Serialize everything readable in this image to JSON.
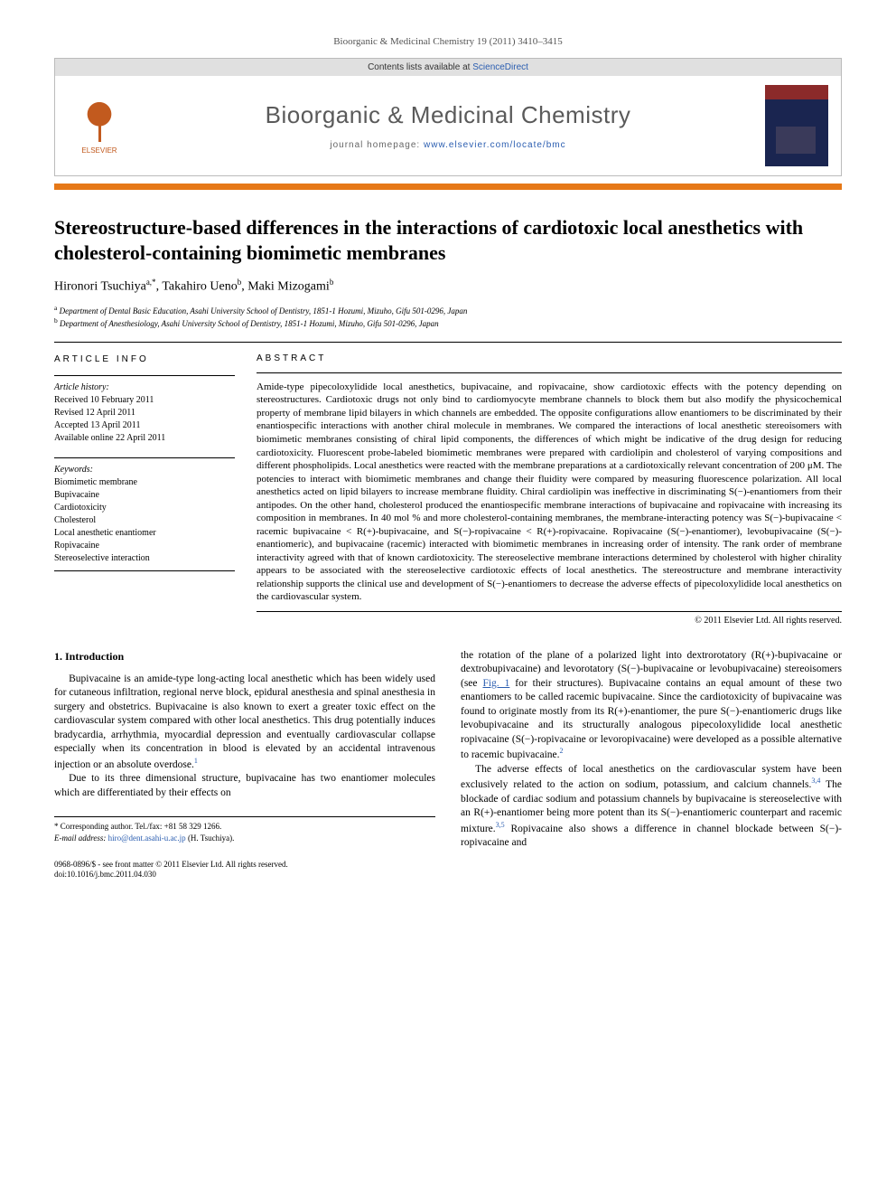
{
  "running_head": "Bioorganic & Medicinal Chemistry 19 (2011) 3410–3415",
  "header": {
    "contents_line_prefix": "Contents lists available at ",
    "contents_link": "ScienceDirect",
    "journal_name": "Bioorganic & Medicinal Chemistry",
    "homepage_prefix": "journal homepage: ",
    "homepage_url": "www.elsevier.com/locate/bmc",
    "publisher_logo_label": "ELSEVIER",
    "cover_label": "Bioorganic & Medicinal Chemistry"
  },
  "colors": {
    "divider": "#e67817",
    "link": "#2a5db0",
    "elsevier": "#c25a1e",
    "cover_top": "#8b2a2a",
    "cover_body": "#1a2550"
  },
  "article": {
    "title": "Stereostructure-based differences in the interactions of cardiotoxic local anesthetics with cholesterol-containing biomimetic membranes",
    "authors_html": "Hironori Tsuchiya",
    "author1": "Hironori Tsuchiya",
    "author1_sup": "a,*",
    "author2": "Takahiro Ueno",
    "author2_sup": "b",
    "author3": "Maki Mizogami",
    "author3_sup": "b",
    "affiliations": [
      {
        "sup": "a",
        "text": "Department of Dental Basic Education, Asahi University School of Dentistry, 1851-1 Hozumi, Mizuho, Gifu 501-0296, Japan"
      },
      {
        "sup": "b",
        "text": "Department of Anesthesiology, Asahi University School of Dentistry, 1851-1 Hozumi, Mizuho, Gifu 501-0296, Japan"
      }
    ]
  },
  "info": {
    "heading": "ARTICLE INFO",
    "history_label": "Article history:",
    "history": [
      "Received 10 February 2011",
      "Revised 12 April 2011",
      "Accepted 13 April 2011",
      "Available online 22 April 2011"
    ],
    "keywords_label": "Keywords:",
    "keywords": [
      "Biomimetic membrane",
      "Bupivacaine",
      "Cardiotoxicity",
      "Cholesterol",
      "Local anesthetic enantiomer",
      "Ropivacaine",
      "Stereoselective interaction"
    ]
  },
  "abstract": {
    "heading": "ABSTRACT",
    "text": "Amide-type pipecoloxylidide local anesthetics, bupivacaine, and ropivacaine, show cardiotoxic effects with the potency depending on stereostructures. Cardiotoxic drugs not only bind to cardiomyocyte membrane channels to block them but also modify the physicochemical property of membrane lipid bilayers in which channels are embedded. The opposite configurations allow enantiomers to be discriminated by their enantiospecific interactions with another chiral molecule in membranes. We compared the interactions of local anesthetic stereoisomers with biomimetic membranes consisting of chiral lipid components, the differences of which might be indicative of the drug design for reducing cardiotoxicity. Fluorescent probe-labeled biomimetic membranes were prepared with cardiolipin and cholesterol of varying compositions and different phospholipids. Local anesthetics were reacted with the membrane preparations at a cardiotoxically relevant concentration of 200 μM. The potencies to interact with biomimetic membranes and change their fluidity were compared by measuring fluorescence polarization. All local anesthetics acted on lipid bilayers to increase membrane fluidity. Chiral cardiolipin was ineffective in discriminating S(−)-enantiomers from their antipodes. On the other hand, cholesterol produced the enantiospecific membrane interactions of bupivacaine and ropivacaine with increasing its composition in membranes. In 40 mol % and more cholesterol-containing membranes, the membrane-interacting potency was S(−)-bupivacaine < racemic bupivacaine < R(+)-bupivacaine, and S(−)-ropivacaine < R(+)-ropivacaine. Ropivacaine (S(−)-enantiomer), levobupivacaine (S(−)-enantiomeric), and bupivacaine (racemic) interacted with biomimetic membranes in increasing order of intensity. The rank order of membrane interactivity agreed with that of known cardiotoxicity. The stereoselective membrane interactions determined by cholesterol with higher chirality appears to be associated with the stereoselective cardiotoxic effects of local anesthetics. The stereostructure and membrane interactivity relationship supports the clinical use and development of S(−)-enantiomers to decrease the adverse effects of pipecoloxylidide local anesthetics on the cardiovascular system.",
    "copyright": "© 2011 Elsevier Ltd. All rights reserved."
  },
  "body": {
    "section_heading": "1. Introduction",
    "col1_p1": "Bupivacaine is an amide-type long-acting local anesthetic which has been widely used for cutaneous infiltration, regional nerve block, epidural anesthesia and spinal anesthesia in surgery and obstetrics. Bupivacaine is also known to exert a greater toxic effect on the cardiovascular system compared with other local anesthetics. This drug potentially induces bradycardia, arrhythmia, myocardial depression and eventually cardiovascular collapse especially when its concentration in blood is elevated by an accidental intravenous injection or an absolute overdose.",
    "col1_p1_ref": "1",
    "col1_p2": "Due to its three dimensional structure, bupivacaine has two enantiomer molecules which are differentiated by their effects on",
    "col2_p1a": "the rotation of the plane of a polarized light into dextrorotatory (R(+)-bupivacaine or dextrobupivacaine) and levorotatory (S(−)-bupivacaine or levobupivacaine) stereoisomers (see ",
    "col2_fig_link": "Fig. 1",
    "col2_p1b": " for their structures). Bupivacaine contains an equal amount of these two enantiomers to be called racemic bupivacaine. Since the cardiotoxicity of bupivacaine was found to originate mostly from its R(+)-enantiomer, the pure S(−)-enantiomeric drugs like levobupivacaine and its structurally analogous pipecoloxylidide local anesthetic ropivacaine (S(−)-ropivacaine or levoropivacaine) were developed as a possible alternative to racemic bupivacaine.",
    "col2_p1_ref": "2",
    "col2_p2a": "The adverse effects of local anesthetics on the cardiovascular system have been exclusively related to the action on sodium, potassium, and calcium channels.",
    "col2_p2_ref1": "3,4",
    "col2_p2b": " The blockade of cardiac sodium and potassium channels by bupivacaine is stereoselective with an R(+)-enantiomer being more potent than its S(−)-enantiomeric counterpart and racemic mixture.",
    "col2_p2_ref2": "3,5",
    "col2_p2c": " Ropivacaine also shows a difference in channel blockade between S(−)-ropivacaine and"
  },
  "footer": {
    "corr_label": "* Corresponding author. Tel./fax: +81 58 329 1266.",
    "email_label": "E-mail address:",
    "email": "hiro@dent.asahi-u.ac.jp",
    "email_person": "(H. Tsuchiya)."
  },
  "doi": {
    "line1": "0968-0896/$ - see front matter © 2011 Elsevier Ltd. All rights reserved.",
    "line2": "doi:10.1016/j.bmc.2011.04.030"
  }
}
